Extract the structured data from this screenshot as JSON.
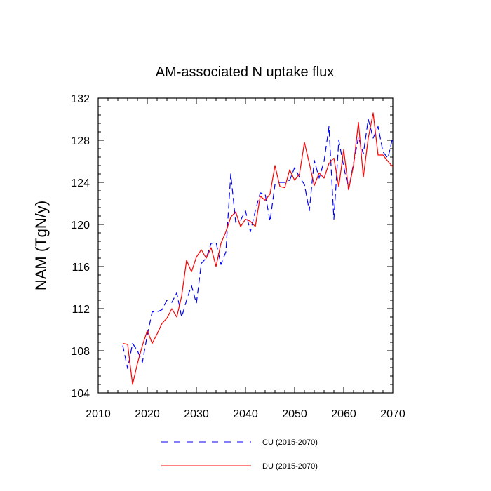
{
  "chart_data": {
    "type": "line",
    "title": "AM-associated N uptake flux",
    "xlabel": "",
    "ylabel": "NAM  (TgN/y)",
    "xlim": [
      2010,
      2070
    ],
    "ylim": [
      104,
      132
    ],
    "xticks": [
      2010,
      2020,
      2030,
      2040,
      2050,
      2060,
      2070
    ],
    "yticks": [
      104,
      108,
      112,
      116,
      120,
      124,
      128,
      132
    ],
    "x": [
      2015,
      2016,
      2017,
      2018,
      2019,
      2020,
      2021,
      2022,
      2023,
      2024,
      2025,
      2026,
      2027,
      2028,
      2029,
      2030,
      2031,
      2032,
      2033,
      2034,
      2035,
      2036,
      2037,
      2038,
      2039,
      2040,
      2041,
      2042,
      2043,
      2044,
      2045,
      2046,
      2047,
      2048,
      2049,
      2050,
      2051,
      2052,
      2053,
      2054,
      2055,
      2056,
      2057,
      2058,
      2059,
      2060,
      2061,
      2062,
      2063,
      2064,
      2065,
      2066,
      2067,
      2068,
      2069,
      2070
    ],
    "series": [
      {
        "name": "CU (2015-2070)",
        "color": "#0000ff",
        "dash": "dashed",
        "values": [
          108.5,
          106.3,
          108.7,
          108.0,
          106.9,
          109.5,
          111.7,
          111.7,
          111.9,
          112.8,
          112.6,
          113.5,
          111.2,
          112.8,
          114.2,
          112.5,
          116.3,
          116.8,
          118.2,
          118.3,
          116.2,
          117.4,
          124.8,
          120.2,
          120.4,
          121.3,
          119.3,
          121.3,
          123.0,
          122.9,
          120.3,
          123.8,
          124.0,
          124.0,
          124.2,
          125.4,
          124.5,
          123.8,
          121.3,
          126.1,
          124.4,
          126.0,
          129.3,
          120.5,
          128.0,
          125.5,
          123.3,
          125.8,
          128.3,
          126.7,
          130.0,
          128.2,
          129.3,
          126.9,
          126.3,
          128.3
        ]
      },
      {
        "name": "DU (2015-2070)",
        "color": "#ff0000",
        "dash": "solid",
        "values": [
          108.7,
          108.6,
          104.8,
          106.8,
          108.5,
          109.9,
          108.7,
          109.6,
          110.6,
          111.1,
          112.0,
          111.2,
          113.2,
          116.6,
          115.5,
          116.9,
          117.6,
          116.8,
          117.8,
          116.0,
          118.2,
          119.3,
          120.7,
          121.2,
          119.8,
          120.5,
          120.3,
          119.8,
          122.7,
          122.3,
          122.9,
          125.6,
          123.6,
          123.5,
          125.2,
          124.2,
          124.8,
          127.8,
          125.8,
          123.7,
          124.9,
          124.4,
          125.8,
          126.3,
          123.6,
          127.1,
          123.3,
          125.6,
          129.7,
          124.5,
          128.2,
          130.6,
          126.6,
          126.6,
          126.0,
          125.5
        ]
      }
    ],
    "legend_position": "bottom",
    "grid": false
  }
}
